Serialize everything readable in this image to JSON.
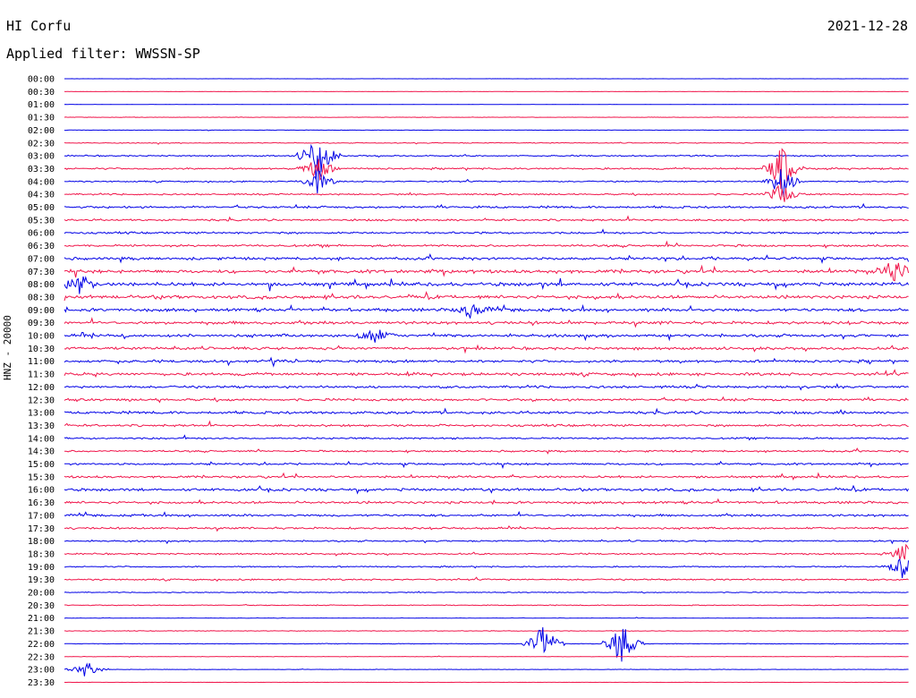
{
  "header": {
    "station": "HI Corfu",
    "date": "2021-12-28",
    "filter_label": "Applied filter: WWSSN-SP"
  },
  "channel_label": "HNZ - 20000",
  "colors": {
    "even_line": "#0000e6",
    "odd_line": "#f0154a"
  },
  "chart_data": {
    "type": "line",
    "title": "HI Corfu",
    "subtitle": "Applied filter: WWSSN-SP",
    "ylabel": "HNZ - 20000",
    "row_labels": [
      "00:00",
      "00:30",
      "01:00",
      "01:30",
      "02:00",
      "02:30",
      "03:00",
      "03:30",
      "04:00",
      "04:30",
      "05:00",
      "05:30",
      "06:00",
      "06:30",
      "07:00",
      "07:30",
      "08:00",
      "08:30",
      "09:00",
      "09:30",
      "10:00",
      "10:30",
      "11:00",
      "11:30",
      "12:00",
      "12:30",
      "13:00",
      "13:30",
      "14:00",
      "14:30",
      "15:00",
      "15:30",
      "16:00",
      "16:30",
      "17:00",
      "17:30",
      "18:00",
      "18:30",
      "19:00",
      "19:30",
      "20:00",
      "20:30",
      "21:00",
      "21:30",
      "22:00",
      "22:30",
      "23:00",
      "23:30"
    ],
    "activity_level": [
      0.05,
      0.05,
      0.05,
      0.1,
      0.1,
      0.2,
      0.3,
      0.4,
      0.3,
      0.35,
      0.5,
      0.45,
      0.45,
      0.5,
      0.6,
      0.75,
      0.8,
      0.75,
      0.7,
      0.65,
      0.65,
      0.6,
      0.6,
      0.65,
      0.55,
      0.55,
      0.6,
      0.5,
      0.4,
      0.4,
      0.45,
      0.5,
      0.6,
      0.55,
      0.5,
      0.45,
      0.35,
      0.35,
      0.3,
      0.35,
      0.2,
      0.2,
      0.1,
      0.15,
      0.15,
      0.1,
      0.1,
      0.05
    ],
    "events": [
      {
        "row": 6,
        "minute": 9.0,
        "amp": 2.5
      },
      {
        "row": 7,
        "minute": 9.0,
        "amp": 1.2
      },
      {
        "row": 7,
        "minute": 25.5,
        "amp": 2.2
      },
      {
        "row": 8,
        "minute": 9.0,
        "amp": 1.0
      },
      {
        "row": 8,
        "minute": 25.5,
        "amp": 1.5
      },
      {
        "row": 9,
        "minute": 25.5,
        "amp": 1.0
      },
      {
        "row": 15,
        "minute": 29.5,
        "amp": 1.2
      },
      {
        "row": 16,
        "minute": 0.5,
        "amp": 1.0
      },
      {
        "row": 18,
        "minute": 14.5,
        "amp": 0.8
      },
      {
        "row": 20,
        "minute": 11.0,
        "amp": 0.8
      },
      {
        "row": 37,
        "minute": 29.8,
        "amp": 1.0
      },
      {
        "row": 38,
        "minute": 29.8,
        "amp": 1.0
      },
      {
        "row": 44,
        "minute": 17.0,
        "amp": 2.0
      },
      {
        "row": 44,
        "minute": 19.8,
        "amp": 2.0
      },
      {
        "row": 46,
        "minute": 0.8,
        "amp": 0.7
      }
    ]
  }
}
